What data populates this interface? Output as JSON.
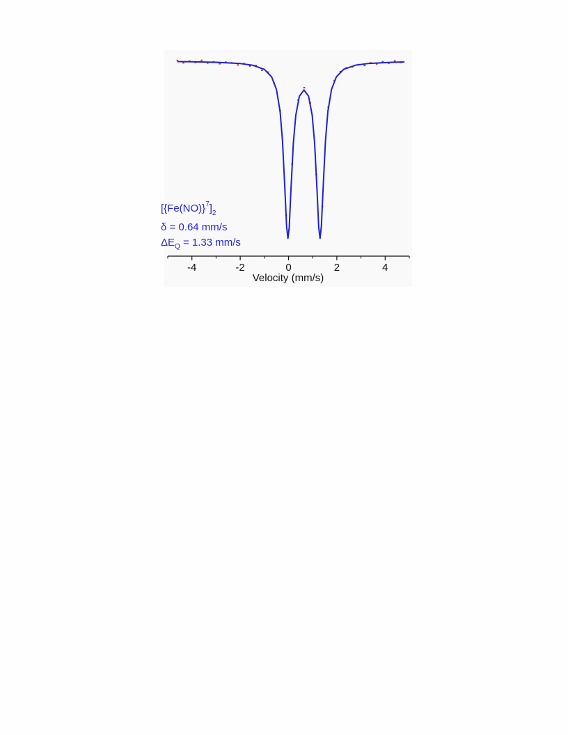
{
  "chart_data": {
    "type": "line",
    "x_label": "Velocity (mm/s)",
    "xlim": [
      -5,
      5
    ],
    "xticks": [
      -4,
      -2,
      0,
      2,
      4
    ],
    "xminorticks": [
      -5,
      -3,
      -1,
      1,
      3,
      5
    ],
    "ylim": [
      -0.1,
      1.05
    ],
    "annotations": [
      {
        "parts": [
          "[{Fe(NO)}",
          "7",
          "]",
          "2"
        ]
      },
      {
        "parts": [
          "δ = 0.64 mm/s"
        ]
      },
      {
        "parts": [
          "ΔE",
          "Q",
          " = 1.33 mm/s"
        ]
      }
    ],
    "series": [
      {
        "style": "points",
        "color": "#c0301e",
        "x": [
          -4.6,
          -4.35,
          -4.1,
          -3.85,
          -3.6,
          -3.35,
          -3.1,
          -2.85,
          -2.6,
          -2.35,
          -2.1,
          -1.85,
          -1.6,
          -1.35,
          -1.1,
          -0.85,
          -0.6,
          -0.35,
          -0.1,
          0.15,
          0.4,
          0.65,
          0.9,
          1.15,
          1.4,
          1.65,
          1.9,
          2.15,
          2.4,
          2.65,
          2.9,
          3.15,
          3.4,
          3.65,
          3.9,
          4.15,
          4.4,
          4.65
        ],
        "values": [
          1.003,
          0.99,
          1.0,
          0.992,
          1.004,
          0.989,
          0.996,
          0.985,
          0.994,
          0.99,
          0.978,
          0.986,
          0.972,
          0.975,
          0.948,
          0.938,
          0.876,
          0.72,
          0.13,
          0.42,
          0.78,
          0.85,
          0.764,
          0.36,
          0.18,
          0.74,
          0.89,
          0.94,
          0.962,
          0.968,
          0.98,
          0.975,
          0.99,
          0.984,
          0.997,
          0.988,
          1.001,
          0.992
        ]
      },
      {
        "style": "line",
        "color": "#1f1fd8",
        "x": [
          -4.6,
          -4,
          -3,
          -2,
          -1.5,
          -1,
          -0.7,
          -0.5,
          -0.35,
          -0.25,
          -0.15,
          -0.08,
          -0.025,
          0.03,
          0.1,
          0.2,
          0.3,
          0.45,
          0.64,
          0.83,
          0.98,
          1.08,
          1.18,
          1.25,
          1.305,
          1.36,
          1.43,
          1.53,
          1.63,
          1.78,
          1.98,
          2.28,
          2.78,
          3.28,
          4.28,
          4.8
        ],
        "values": [
          0.997,
          0.996,
          0.993,
          0.986,
          0.977,
          0.953,
          0.911,
          0.84,
          0.717,
          0.551,
          0.277,
          0.069,
          0,
          0.062,
          0.273,
          0.538,
          0.694,
          0.802,
          0.837,
          0.802,
          0.694,
          0.538,
          0.273,
          0.062,
          0,
          0.069,
          0.277,
          0.551,
          0.717,
          0.84,
          0.911,
          0.953,
          0.977,
          0.986,
          0.993,
          0.995
        ]
      }
    ]
  }
}
